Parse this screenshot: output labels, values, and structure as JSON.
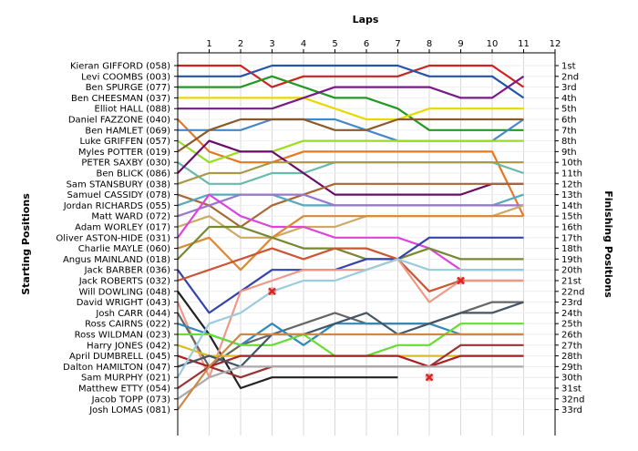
{
  "chart_data": {
    "type": "line",
    "title": "",
    "xlabel": "Laps",
    "ylabel_left": "Starting Positions",
    "ylabel_right": "Finishing Positions",
    "laps": [
      1,
      2,
      3,
      4,
      5,
      6,
      7,
      8,
      9,
      10,
      11,
      12
    ],
    "riders": [
      "Kieran GIFFORD (058)",
      "Levi COOMBS (003)",
      "Ben SPURGE (077)",
      "Ben CHEESMAN (037)",
      "Elliot HALL (088)",
      "Daniel FAZZONE (040)",
      "Ben HAMLET (069)",
      "Luke GRIFFEN (057)",
      "Myles POTTER (019)",
      "PETER SAXBY (030)",
      "Ben BLICK (086)",
      "Sam STANSBURY (038)",
      "Samuel CASSIDY (078)",
      "Jordan RICHARDS (055)",
      "Matt WARD (072)",
      "Adam WORLEY (017)",
      "Oliver ASTON-HIDE (031)",
      "Charlie MAYLE (060)",
      "Angus MAINLAND (018)",
      "Jack BARBER (036)",
      "Jack ROBERTS (032)",
      "Will DOWLING (048)",
      "David WRIGHT (043)",
      "Josh CARR (044)",
      "Ross CAIRNS (022)",
      "Ross WILDMAN (023)",
      "Harry JONES (042)",
      "April DUMBRELL (045)",
      "Dalton HAMILTON (047)",
      "Sam MURPHY (021)",
      "Matthew ETTY (054)",
      "Jacob TOPP (073)",
      "Josh LOMAS (081)"
    ],
    "finishing_labels": [
      "1st",
      "2nd",
      "3rd",
      "4th",
      "5th",
      "6th",
      "7th",
      "8th",
      "9th",
      "10th",
      "11th",
      "12th",
      "13th",
      "14th",
      "15th",
      "16th",
      "17th",
      "18th",
      "19th",
      "20th",
      "21st",
      "22nd",
      "23rd",
      "24th",
      "25th",
      "26th",
      "27th",
      "28th",
      "29th",
      "30th",
      "31st",
      "32nd",
      "33rd"
    ],
    "series": [
      {
        "color": "#cc2222",
        "positions": [
          1,
          1,
          1,
          3,
          2,
          2,
          2,
          2,
          1,
          1,
          1,
          3
        ]
      },
      {
        "color": "#2255aa",
        "positions": [
          2,
          2,
          2,
          1,
          1,
          1,
          1,
          1,
          2,
          2,
          2,
          4
        ]
      },
      {
        "color": "#229922",
        "positions": [
          3,
          3,
          3,
          2,
          3,
          4,
          4,
          5,
          7,
          7,
          7,
          7
        ]
      },
      {
        "color": "#e8d800",
        "positions": [
          4,
          4,
          4,
          4,
          4,
          5,
          6,
          6,
          5,
          5,
          5,
          5
        ]
      },
      {
        "color": "#7a1a8a",
        "positions": [
          5,
          5,
          5,
          5,
          4,
          3,
          3,
          3,
          3,
          4,
          4,
          2
        ]
      },
      {
        "color": "#e87820",
        "positions": [
          6,
          9,
          10,
          10,
          9,
          9,
          9,
          9,
          9,
          9,
          9,
          15
        ]
      },
      {
        "color": "#4488cc",
        "positions": [
          7,
          7,
          7,
          6,
          6,
          6,
          7,
          8,
          8,
          8,
          8,
          6
        ]
      },
      {
        "color": "#99dd22",
        "positions": [
          8,
          10,
          9,
          9,
          8,
          8,
          8,
          8,
          8,
          8,
          8,
          8
        ]
      },
      {
        "color": "#8b5a2b",
        "positions": [
          9,
          7,
          6,
          6,
          6,
          7,
          7,
          6,
          6,
          6,
          6,
          6
        ]
      },
      {
        "color": "#66bbaa",
        "positions": [
          10,
          12,
          12,
          11,
          11,
          10,
          10,
          10,
          10,
          10,
          10,
          11
        ]
      },
      {
        "color": "#6a0d6a",
        "positions": [
          11,
          8,
          9,
          9,
          11,
          13,
          13,
          13,
          13,
          13,
          12,
          12
        ]
      },
      {
        "color": "#a89848",
        "positions": [
          12,
          11,
          11,
          10,
          10,
          10,
          10,
          10,
          10,
          10,
          10,
          10
        ]
      },
      {
        "color": "#aa6633",
        "positions": [
          13,
          14,
          16,
          14,
          13,
          12,
          12,
          12,
          12,
          12,
          12,
          12
        ]
      },
      {
        "color": "#55aabb",
        "positions": [
          14,
          13,
          13,
          13,
          14,
          14,
          14,
          14,
          14,
          14,
          14,
          13
        ]
      },
      {
        "color": "#9977cc",
        "positions": [
          15,
          14,
          13,
          13,
          13,
          14,
          14,
          14,
          14,
          14,
          14,
          14
        ]
      },
      {
        "color": "#ccaa66",
        "positions": [
          16,
          15,
          17,
          17,
          16,
          16,
          15,
          15,
          15,
          15,
          15,
          14
        ]
      },
      {
        "color": "#dd44dd",
        "positions": [
          17,
          13,
          15,
          16,
          16,
          17,
          17,
          17,
          18,
          20,
          20,
          20
        ]
      },
      {
        "color": "#dd8833",
        "positions": [
          18,
          17,
          20,
          17,
          15,
          15,
          15,
          15,
          15,
          15,
          15,
          15
        ]
      },
      {
        "color": "#778833",
        "positions": [
          19,
          16,
          16,
          17,
          18,
          18,
          19,
          19,
          18,
          19,
          19,
          19
        ]
      },
      {
        "color": "#3344aa",
        "positions": [
          20,
          24,
          22,
          20,
          20,
          20,
          19,
          19,
          17,
          17,
          17,
          17
        ]
      },
      {
        "color": "#cc5533",
        "positions": [
          21,
          20,
          19,
          18,
          19,
          18,
          18,
          19,
          22,
          21,
          21,
          21
        ]
      },
      {
        "color": "#222222",
        "positions": [
          22,
          26,
          31,
          30,
          30,
          30,
          30,
          30,
          null,
          null,
          null,
          null
        ]
      },
      {
        "color": "#ee9988",
        "positions": [
          23,
          30,
          22,
          21,
          20,
          20,
          20,
          19,
          23,
          21,
          21,
          21
        ]
      },
      {
        "color": "#666666",
        "positions": [
          24,
          29,
          27,
          26,
          25,
          24,
          25,
          25,
          25,
          24,
          23,
          23
        ]
      },
      {
        "color": "#3388bb",
        "positions": [
          25,
          26,
          27,
          25,
          27,
          25,
          25,
          25,
          25,
          26,
          26,
          26
        ]
      },
      {
        "color": "#66dd33",
        "positions": [
          26,
          26,
          27,
          27,
          26,
          28,
          28,
          27,
          27,
          25,
          25,
          25
        ]
      },
      {
        "color": "#ddbb22",
        "positions": [
          27,
          28,
          28,
          28,
          28,
          28,
          28,
          28,
          28,
          28,
          28,
          28
        ]
      },
      {
        "color": "#aa2222",
        "positions": [
          28,
          29,
          28,
          28,
          28,
          28,
          28,
          28,
          29,
          28,
          28,
          28
        ]
      },
      {
        "color": "#445566",
        "positions": [
          29,
          28,
          29,
          26,
          26,
          25,
          24,
          26,
          25,
          24,
          24,
          23
        ]
      },
      {
        "color": "#99ccdd",
        "positions": [
          30,
          25,
          24,
          22,
          21,
          21,
          20,
          19,
          20,
          20,
          20,
          20
        ]
      },
      {
        "color": "#993333",
        "positions": [
          31,
          29,
          30,
          29,
          29,
          29,
          29,
          29,
          29,
          27,
          27,
          27
        ]
      },
      {
        "color": "#aaaaaa",
        "positions": [
          32,
          30,
          29,
          29,
          29,
          29,
          29,
          29,
          29,
          29,
          29,
          29
        ]
      },
      {
        "color": "#cc8844",
        "positions": [
          33,
          29,
          26,
          26,
          26,
          26,
          26,
          26,
          26,
          26,
          26,
          26
        ]
      }
    ],
    "dnf_markers": [
      {
        "lap": 3,
        "position": 22
      },
      {
        "lap": 9,
        "position": 21
      },
      {
        "lap": 8,
        "position": 30
      }
    ],
    "marker_color": "#dd2222",
    "grid": true,
    "legend": "none"
  }
}
